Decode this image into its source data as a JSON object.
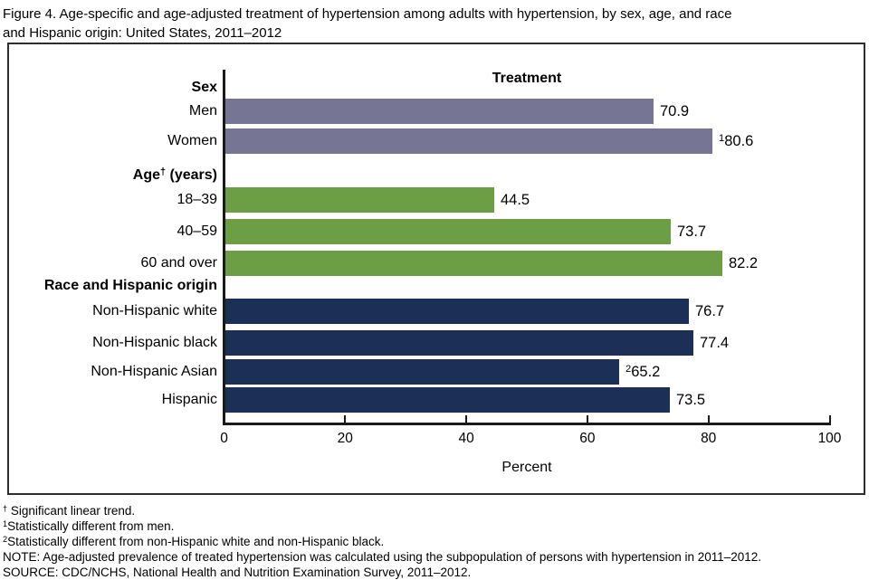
{
  "title_lines": [
    "Figure 4. Age-specific and age-adjusted treatment of hypertension among adults with hypertension, by sex, age, and race",
    "and Hispanic origin: United States, 2011–2012"
  ],
  "chart_data": {
    "type": "bar",
    "orientation": "horizontal",
    "panel_title": "Treatment",
    "xlabel": "Percent",
    "xlim": [
      0,
      100
    ],
    "xticks": [
      0,
      20,
      40,
      60,
      80,
      100
    ],
    "grid": false,
    "legend": "none",
    "groups": [
      {
        "label": "Sex",
        "label_sup": "",
        "label_rest": "",
        "color": "#767694",
        "bars": [
          {
            "category": "Men",
            "value": 70.9,
            "value_sup": "",
            "value_label": "70.9"
          },
          {
            "category": "Women",
            "value": 80.6,
            "value_sup": "1",
            "value_label": "80.6"
          }
        ]
      },
      {
        "label": "Age",
        "label_sup": "†",
        "label_rest": " (years)",
        "color": "#6c9e45",
        "bars": [
          {
            "category": "18–39",
            "value": 44.5,
            "value_sup": "",
            "value_label": "44.5"
          },
          {
            "category": "40–59",
            "value": 73.7,
            "value_sup": "",
            "value_label": "73.7"
          },
          {
            "category": "60 and over",
            "value": 82.2,
            "value_sup": "",
            "value_label": "82.2"
          }
        ]
      },
      {
        "label": "Race and Hispanic origin",
        "label_sup": "",
        "label_rest": "",
        "color": "#1c2f57",
        "bars": [
          {
            "category": "Non-Hispanic white",
            "value": 76.7,
            "value_sup": "",
            "value_label": "76.7"
          },
          {
            "category": "Non-Hispanic black",
            "value": 77.4,
            "value_sup": "",
            "value_label": "77.4"
          },
          {
            "category": "Non-Hispanic Asian",
            "value": 65.2,
            "value_sup": "2",
            "value_label": "65.2"
          },
          {
            "category": "Hispanic",
            "value": 73.5,
            "value_sup": "",
            "value_label": "73.5"
          }
        ]
      }
    ]
  },
  "footnotes": [
    {
      "sup": "†",
      "text": " Significant linear trend."
    },
    {
      "sup": "1",
      "text": "Statistically different from men."
    },
    {
      "sup": "2",
      "text": "Statistically different from non-Hispanic white and non-Hispanic black."
    },
    {
      "sup": "",
      "text": "NOTE: Age-adjusted prevalence of treated hypertension was calculated using the subpopulation of persons with hypertension in 2011–2012."
    },
    {
      "sup": "",
      "text": "SOURCE: CDC/NCHS, National Health and Nutrition Examination Survey, 2011–2012."
    }
  ]
}
